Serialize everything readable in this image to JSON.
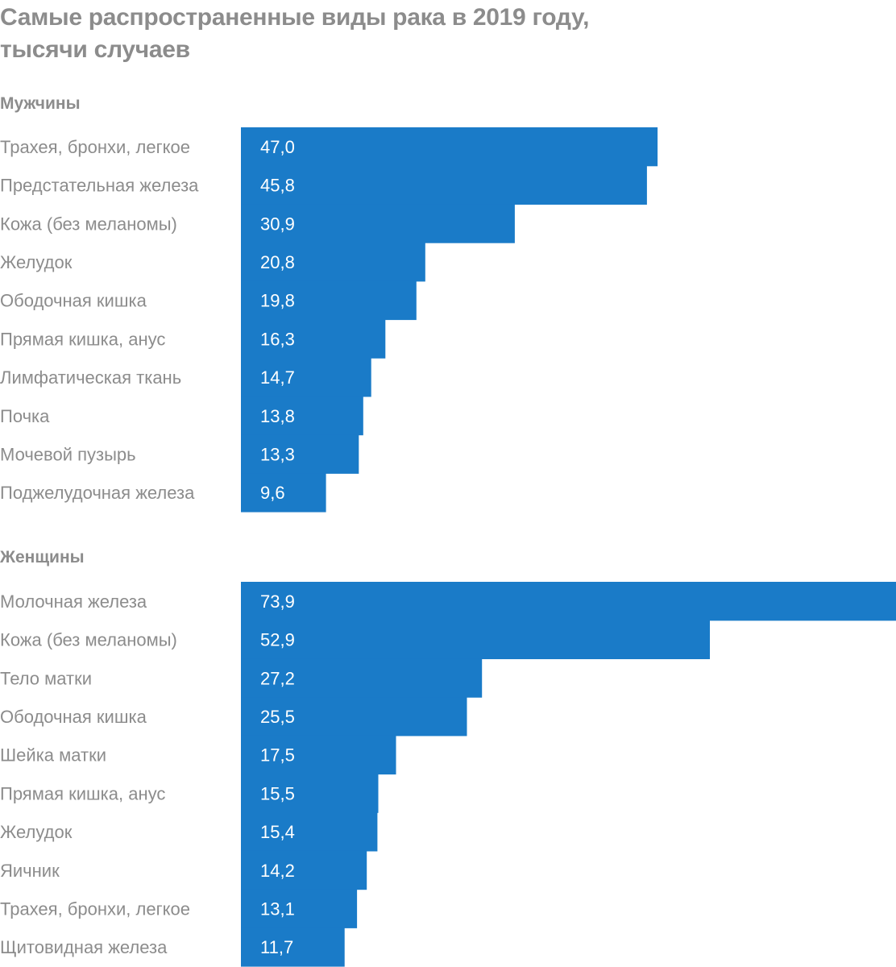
{
  "title_line1": "Самые распространенные виды рака в 2019 году,",
  "title_line2": "тысячи случаев",
  "colors": {
    "bar": "#1a7bc8",
    "text": "#8c8c8c",
    "value_text": "#ffffff"
  },
  "chart_data": [
    {
      "type": "bar",
      "orientation": "horizontal",
      "title": "Мужчины",
      "categories": [
        "Трахея, бронхи, легкое",
        "Предстательная железа",
        "Кожа (без меланомы)",
        "Желудок",
        "Ободочная кишка",
        "Прямая кишка, анус",
        "Лимфатическая ткань",
        "Почка",
        "Мочевой пузырь",
        "Поджелудочная железа"
      ],
      "values": [
        47.0,
        45.8,
        30.9,
        20.8,
        19.8,
        16.3,
        14.7,
        13.8,
        13.3,
        9.6
      ],
      "value_labels": [
        "47,0",
        "45,8",
        "30,9",
        "20,8",
        "19,8",
        "16,3",
        "14,7",
        "13,8",
        "13,3",
        "9,6"
      ],
      "xlim": [
        0,
        73.9
      ]
    },
    {
      "type": "bar",
      "orientation": "horizontal",
      "title": "Женщины",
      "categories": [
        "Молочная железа",
        "Кожа (без меланомы)",
        "Тело матки",
        "Ободочная кишка",
        "Шейка матки",
        "Прямая кишка, анус",
        "Желудок",
        "Яичник",
        "Трахея, бронхи, легкое",
        "Щитовидная железа"
      ],
      "values": [
        73.9,
        52.9,
        27.2,
        25.5,
        17.5,
        15.5,
        15.4,
        14.2,
        13.1,
        11.7
      ],
      "value_labels": [
        "73,9",
        "52,9",
        "27,2",
        "25,5",
        "17,5",
        "15,5",
        "15,4",
        "14,2",
        "13,1",
        "11,7"
      ],
      "xlim": [
        0,
        73.9
      ]
    }
  ]
}
